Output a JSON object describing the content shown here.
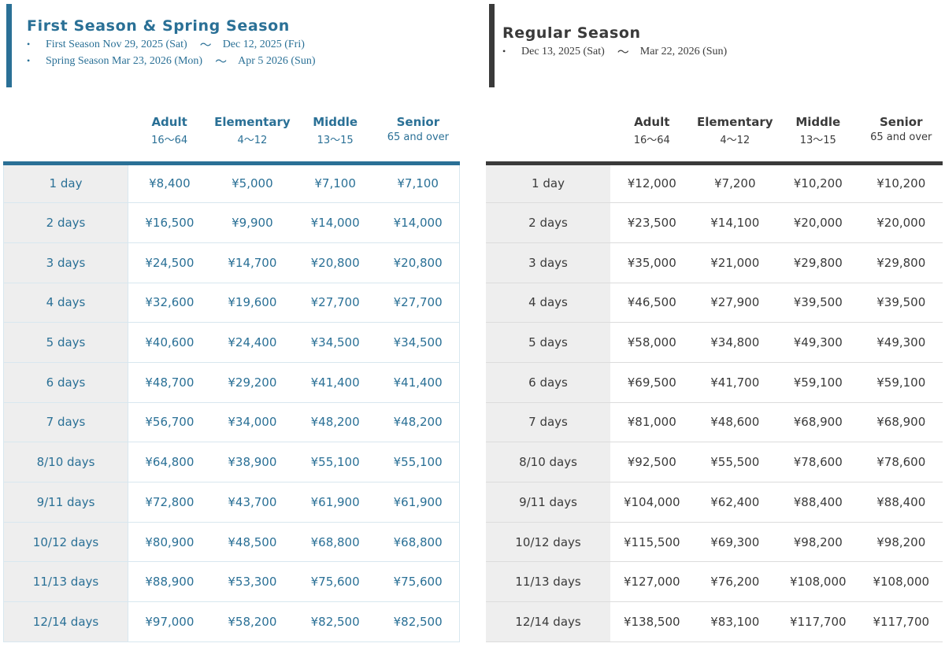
{
  "first_spring": {
    "title": "First Season & Spring Season",
    "periods": [
      {
        "bullet": "•",
        "start": "First Season Nov 29, 2025 (Sat)",
        "sep": "～",
        "end": "Dec 12, 2025 (Fri)"
      },
      {
        "bullet": "•",
        "start": "Spring Season Mar 23, 2026 (Mon)",
        "sep": "～",
        "end": "Apr 5 2026 (Sun)"
      }
    ],
    "accent_color": "#2a7096",
    "columns": [
      {
        "name": "Adult",
        "age": "16～64"
      },
      {
        "name": "Elementary",
        "age": "4～12"
      },
      {
        "name": "Middle",
        "age": "13～15"
      },
      {
        "name": "Senior",
        "age": "65 and over"
      }
    ],
    "rows": [
      {
        "label": "1 day",
        "prices": [
          "¥8,400",
          "¥5,000",
          "¥7,100",
          "¥7,100"
        ]
      },
      {
        "label": "2 days",
        "prices": [
          "¥16,500",
          "¥9,900",
          "¥14,000",
          "¥14,000"
        ]
      },
      {
        "label": "3 days",
        "prices": [
          "¥24,500",
          "¥14,700",
          "¥20,800",
          "¥20,800"
        ]
      },
      {
        "label": "4 days",
        "prices": [
          "¥32,600",
          "¥19,600",
          "¥27,700",
          "¥27,700"
        ]
      },
      {
        "label": "5 days",
        "prices": [
          "¥40,600",
          "¥24,400",
          "¥34,500",
          "¥34,500"
        ]
      },
      {
        "label": "6 days",
        "prices": [
          "¥48,700",
          "¥29,200",
          "¥41,400",
          "¥41,400"
        ]
      },
      {
        "label": "7 days",
        "prices": [
          "¥56,700",
          "¥34,000",
          "¥48,200",
          "¥48,200"
        ]
      },
      {
        "label": "8/10 days",
        "prices": [
          "¥64,800",
          "¥38,900",
          "¥55,100",
          "¥55,100"
        ]
      },
      {
        "label": "9/11 days",
        "prices": [
          "¥72,800",
          "¥43,700",
          "¥61,900",
          "¥61,900"
        ]
      },
      {
        "label": "10/12 days",
        "prices": [
          "¥80,900",
          "¥48,500",
          "¥68,800",
          "¥68,800"
        ]
      },
      {
        "label": "11/13 days",
        "prices": [
          "¥88,900",
          "¥53,300",
          "¥75,600",
          "¥75,600"
        ]
      },
      {
        "label": "12/14 days",
        "prices": [
          "¥97,000",
          "¥58,200",
          "¥82,500",
          "¥82,500"
        ]
      }
    ]
  },
  "regular": {
    "title": "Regular Season",
    "periods": [
      {
        "bullet": "•",
        "start": "Dec 13, 2025 (Sat)",
        "sep": "～",
        "end": "Mar 22, 2026 (Sun)"
      }
    ],
    "accent_color": "#3a3a3a",
    "columns": [
      {
        "name": "Adult",
        "age": "16～64"
      },
      {
        "name": "Elementary",
        "age": "4～12"
      },
      {
        "name": "Middle",
        "age": "13～15"
      },
      {
        "name": "Senior",
        "age": "65 and over"
      }
    ],
    "rows": [
      {
        "label": "1 day",
        "prices": [
          "¥12,000",
          "¥7,200",
          "¥10,200",
          "¥10,200"
        ]
      },
      {
        "label": "2 days",
        "prices": [
          "¥23,500",
          "¥14,100",
          "¥20,000",
          "¥20,000"
        ]
      },
      {
        "label": "3 days",
        "prices": [
          "¥35,000",
          "¥21,000",
          "¥29,800",
          "¥29,800"
        ]
      },
      {
        "label": "4 days",
        "prices": [
          "¥46,500",
          "¥27,900",
          "¥39,500",
          "¥39,500"
        ]
      },
      {
        "label": "5 days",
        "prices": [
          "¥58,000",
          "¥34,800",
          "¥49,300",
          "¥49,300"
        ]
      },
      {
        "label": "6 days",
        "prices": [
          "¥69,500",
          "¥41,700",
          "¥59,100",
          "¥59,100"
        ]
      },
      {
        "label": "7 days",
        "prices": [
          "¥81,000",
          "¥48,600",
          "¥68,900",
          "¥68,900"
        ]
      },
      {
        "label": "8/10 days",
        "prices": [
          "¥92,500",
          "¥55,500",
          "¥78,600",
          "¥78,600"
        ]
      },
      {
        "label": "9/11 days",
        "prices": [
          "¥104,000",
          "¥62,400",
          "¥88,400",
          "¥88,400"
        ]
      },
      {
        "label": "10/12 days",
        "prices": [
          "¥115,500",
          "¥69,300",
          "¥98,200",
          "¥98,200"
        ]
      },
      {
        "label": "11/13 days",
        "prices": [
          "¥127,000",
          "¥76,200",
          "¥108,000",
          "¥108,000"
        ]
      },
      {
        "label": "12/14 days",
        "prices": [
          "¥138,500",
          "¥83,100",
          "¥117,700",
          "¥117,700"
        ]
      }
    ]
  }
}
